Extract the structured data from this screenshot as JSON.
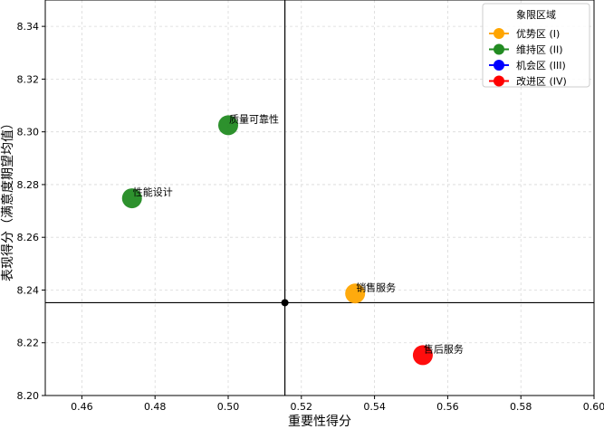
{
  "chart_data": {
    "type": "scatter",
    "title": "",
    "xlabel": "重要性得分",
    "ylabel": "表现得分（满意度期望均值）",
    "xlim": [
      0.45,
      0.6
    ],
    "ylim": [
      8.2,
      8.35
    ],
    "xticks": [
      "0.46",
      "0.48",
      "0.50",
      "0.52",
      "0.54",
      "0.56",
      "0.58",
      "0.60"
    ],
    "yticks": [
      "8.20",
      "8.22",
      "8.24",
      "8.26",
      "8.28",
      "8.30",
      "8.32",
      "8.34"
    ],
    "grid": true,
    "crosshair": {
      "x": 0.5155,
      "y": 8.2352
    },
    "points": [
      {
        "label": "质量可靠性",
        "x": 0.5,
        "y": 8.3025,
        "color": "#228B22"
      },
      {
        "label": "性能设计",
        "x": 0.4737,
        "y": 8.2748,
        "color": "#228B22"
      },
      {
        "label": "销售服务",
        "x": 0.5347,
        "y": 8.2387,
        "color": "#FFA500"
      },
      {
        "label": "售后服务",
        "x": 0.5532,
        "y": 8.2153,
        "color": "#FF0000"
      }
    ],
    "legend": {
      "title": "象限区域",
      "placement": "top-right",
      "entries": [
        {
          "label": "优势区 (I)",
          "color": "#FFA500"
        },
        {
          "label": "维持区 (II)",
          "color": "#228B22"
        },
        {
          "label": "机会区 (III)",
          "color": "#0000FF"
        },
        {
          "label": "改进区 (IV)",
          "color": "#FF0000"
        }
      ]
    }
  }
}
